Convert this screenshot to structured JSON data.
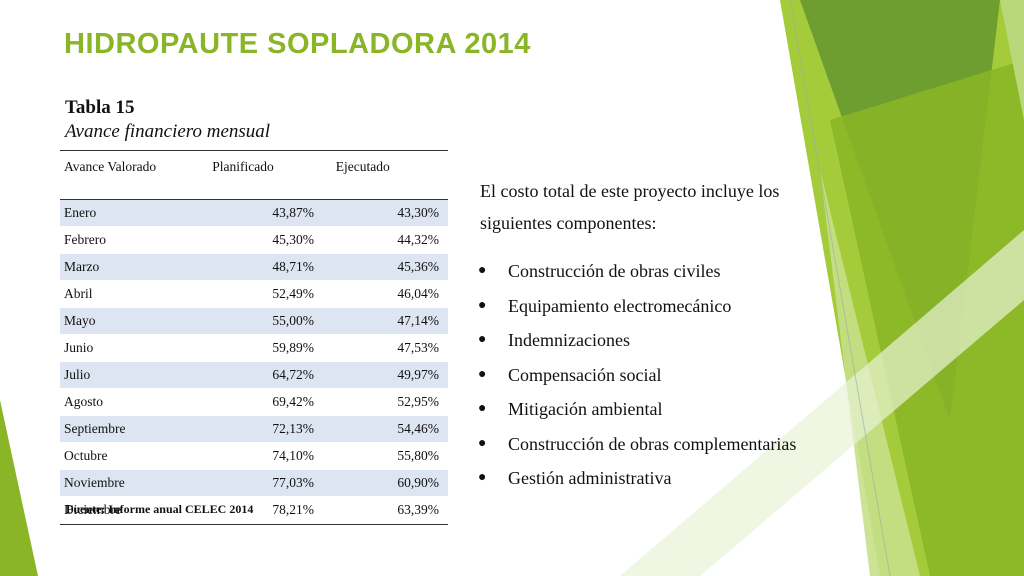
{
  "slide": {
    "title": "HIDROPAUTE SOPLADORA 2014",
    "caption_number": "Tabla 15",
    "caption_description": "Avance financiero mensual",
    "accent_color": "#8ab526"
  },
  "table": {
    "headers": [
      "Avance Valorado",
      "Planificado",
      "Ejecutado"
    ],
    "rows": [
      {
        "month": "Enero",
        "planned": "43,87%",
        "executed": "43,30%"
      },
      {
        "month": "Febrero",
        "planned": "45,30%",
        "executed": "44,32%"
      },
      {
        "month": "Marzo",
        "planned": "48,71%",
        "executed": "45,36%"
      },
      {
        "month": "Abril",
        "planned": "52,49%",
        "executed": "46,04%"
      },
      {
        "month": "Mayo",
        "planned": "55,00%",
        "executed": "47,14%"
      },
      {
        "month": "Junio",
        "planned": "59,89%",
        "executed": "47,53%"
      },
      {
        "month": "Julio",
        "planned": "64,72%",
        "executed": "49,97%"
      },
      {
        "month": "Agosto",
        "planned": "69,42%",
        "executed": "52,95%"
      },
      {
        "month": "Septiembre",
        "planned": "72,13%",
        "executed": "54,46%"
      },
      {
        "month": "Octubre",
        "planned": "74,10%",
        "executed": "55,80%"
      },
      {
        "month": "Noviembre",
        "planned": "77,03%",
        "executed": "60,90%"
      },
      {
        "month": "Diciembre",
        "planned": "78,21%",
        "executed": "63,39%"
      }
    ],
    "source": "Fuente: Informe anual CELEC 2014"
  },
  "content": {
    "intro": "El costo total de este proyecto incluye los siguientes componentes:",
    "bullet_glyph": "●",
    "bullets": [
      "Construcción de obras civiles",
      "Equipamiento electromecánico",
      "Indemnizaciones",
      "Compensación social",
      "Mitigación ambiental",
      "Construcción de obras complementarias",
      "Gestión administrativa"
    ]
  }
}
